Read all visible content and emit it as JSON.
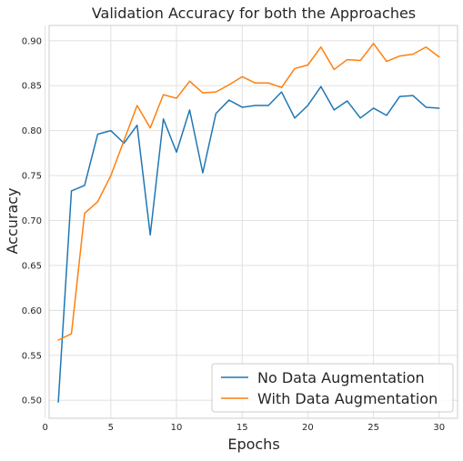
{
  "chart_data": {
    "type": "line",
    "title": "Validation Accuracy for both the Approaches",
    "xlabel": "Epochs",
    "ylabel": "Accuracy",
    "xlim": [
      0.3,
      31.4
    ],
    "ylim": [
      0.48,
      0.917
    ],
    "x_ticks": [
      0,
      5,
      10,
      15,
      20,
      25,
      30
    ],
    "y_ticks": [
      0.5,
      0.55,
      0.6,
      0.65,
      0.7,
      0.75,
      0.8,
      0.85,
      0.9
    ],
    "grid": true,
    "legend_position": "bottom-right",
    "x": [
      1,
      2,
      3,
      4,
      5,
      6,
      7,
      8,
      9,
      10,
      11,
      12,
      13,
      14,
      15,
      16,
      17,
      18,
      19,
      20,
      21,
      22,
      23,
      24,
      25,
      26,
      27,
      28,
      29,
      30
    ],
    "series": [
      {
        "name": "No Data Augmentation",
        "color": "#1f77b4",
        "values": [
          0.498,
          0.733,
          0.739,
          0.796,
          0.8,
          0.786,
          0.806,
          0.684,
          0.813,
          0.776,
          0.823,
          0.753,
          0.819,
          0.834,
          0.826,
          0.828,
          0.828,
          0.843,
          0.814,
          0.828,
          0.849,
          0.823,
          0.833,
          0.814,
          0.825,
          0.817,
          0.838,
          0.839,
          0.826,
          0.825
        ]
      },
      {
        "name": "With Data Augmentation",
        "color": "#ff7f0e",
        "values": [
          0.567,
          0.574,
          0.708,
          0.721,
          0.75,
          0.789,
          0.828,
          0.803,
          0.84,
          0.836,
          0.855,
          0.842,
          0.843,
          0.851,
          0.86,
          0.853,
          0.853,
          0.848,
          0.869,
          0.873,
          0.893,
          0.868,
          0.879,
          0.878,
          0.897,
          0.877,
          0.883,
          0.885,
          0.893,
          0.882
        ]
      }
    ]
  }
}
